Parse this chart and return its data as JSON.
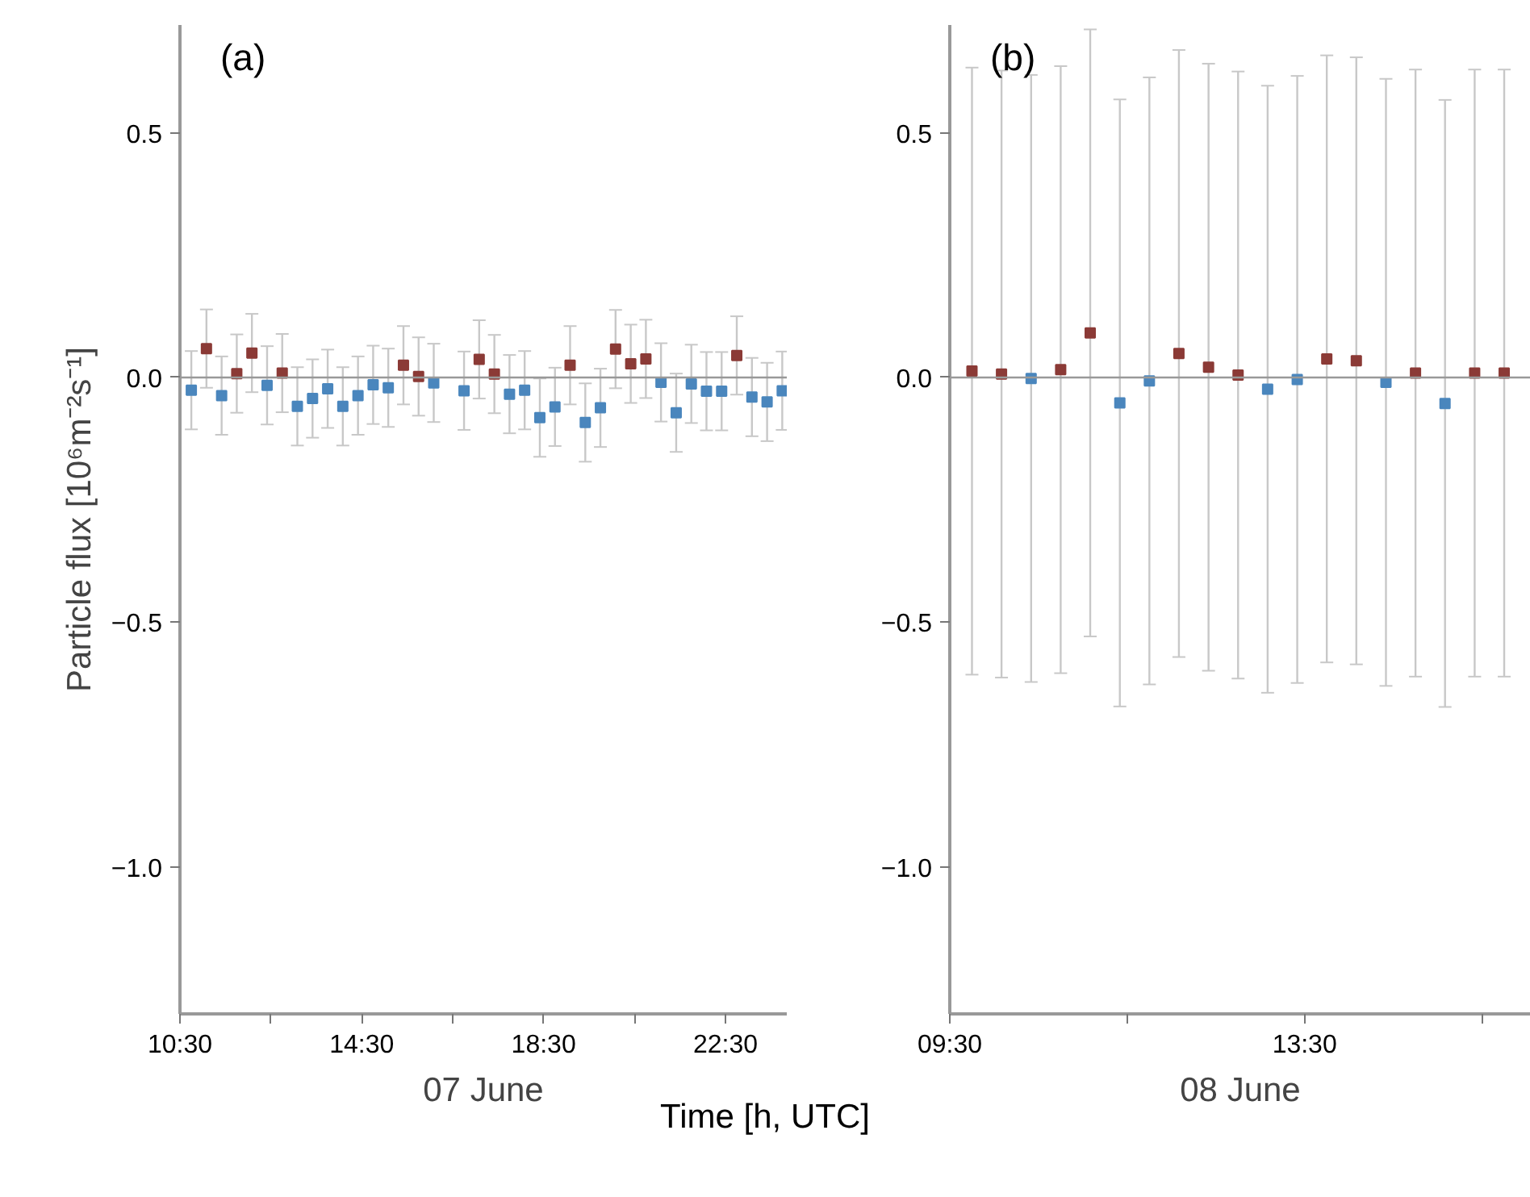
{
  "chart_data": [
    {
      "type": "scatter",
      "title": "(a)",
      "xlabel": "07 June",
      "ylabel": "Particle flux [10⁶m⁻²s⁻¹]",
      "annotations": [
        "Time [h, UTC]"
      ],
      "marker": "square",
      "grid": false,
      "xlim": [
        10.5,
        23.85
      ],
      "ylim": [
        -1.3,
        0.72
      ],
      "xticks": [
        {
          "value": 10.5,
          "label": "10:30"
        },
        {
          "value": 12.5,
          "label": null
        },
        {
          "value": 14.5,
          "label": "14:30"
        },
        {
          "value": 16.5,
          "label": null
        },
        {
          "value": 18.5,
          "label": "18:30"
        },
        {
          "value": 20.5,
          "label": null
        },
        {
          "value": 22.5,
          "label": "22:30"
        }
      ],
      "yticks": [
        {
          "value": 0.5,
          "label": "0.5"
        },
        {
          "value": 0,
          "label": "0.0"
        },
        {
          "value": -0.5,
          "label": "−0.5"
        },
        {
          "value": -1.0,
          "label": "−1.0"
        }
      ],
      "ref_lines": [
        {
          "axis": "y",
          "value": 0,
          "label": null,
          "color": "#999999"
        }
      ],
      "series": [
        {
          "x": [
            10.75,
            11.083,
            11.417,
            11.75,
            12.083,
            12.417,
            12.75,
            13.083,
            13.417,
            13.75,
            14.083,
            14.417,
            14.75,
            15.083,
            15.417,
            15.75,
            16.083,
            16.417,
            16.75,
            17.083,
            17.417,
            17.75,
            18.083,
            18.417,
            18.75,
            19.083,
            19.417,
            19.75,
            20.083,
            20.417,
            20.75,
            21.083,
            21.417,
            21.75,
            22.083,
            22.417,
            22.75,
            23.083,
            23.417,
            23.75
          ],
          "values": [
            -0.026,
            0.059,
            -0.037,
            0.008,
            0.05,
            -0.016,
            0.009,
            -0.059,
            -0.043,
            -0.023,
            -0.059,
            -0.037,
            -0.015,
            -0.021,
            0.025,
            0.002,
            -0.011,
            null,
            -0.027,
            0.037,
            0.007,
            -0.034,
            -0.026,
            -0.082,
            -0.06,
            0.025,
            -0.092,
            -0.062,
            0.058,
            0.028,
            0.038,
            -0.01,
            -0.072,
            -0.013,
            -0.028,
            -0.028,
            0.045,
            -0.04,
            -0.05,
            -0.027
          ],
          "colors": [
            "#4a86bd",
            "#8b3a36",
            "#4a86bd",
            "#8b3a36",
            "#8b3a36",
            "#4a86bd",
            "#8b3a36",
            "#4a86bd",
            "#4a86bd",
            "#4a86bd",
            "#4a86bd",
            "#4a86bd",
            "#4a86bd",
            "#4a86bd",
            "#8b3a36",
            "#8b3a36",
            "#4a86bd",
            "#4a86bd",
            "#4a86bd",
            "#8b3a36",
            "#8b3a36",
            "#4a86bd",
            "#4a86bd",
            "#4a86bd",
            "#4a86bd",
            "#8b3a36",
            "#4a86bd",
            "#4a86bd",
            "#8b3a36",
            "#8b3a36",
            "#8b3a36",
            "#4a86bd",
            "#4a86bd",
            "#4a86bd",
            "#4a86bd",
            "#4a86bd",
            "#8b3a36",
            "#4a86bd",
            "#4a86bd",
            "#4a86bd"
          ],
          "errors": [
            0.08,
            0.08,
            0.08,
            0.08,
            0.08,
            0.08,
            0.08,
            0.08,
            0.08,
            0.08,
            0.08,
            0.08,
            0.08,
            0.08,
            0.08,
            0.08,
            0.08,
            null,
            0.08,
            0.08,
            0.08,
            0.08,
            0.08,
            0.08,
            0.08,
            0.08,
            0.08,
            0.08,
            0.08,
            0.08,
            0.08,
            0.08,
            0.08,
            0.08,
            0.08,
            0.08,
            0.08,
            0.08,
            0.08,
            0.08
          ]
        }
      ]
    },
    {
      "type": "scatter",
      "title": "(b)",
      "xlabel": "08 June",
      "marker": "square",
      "grid": false,
      "xlim": [
        9.5,
        16.05
      ],
      "ylim": [
        -1.3,
        0.72
      ],
      "xticks": [
        {
          "value": 9.5,
          "label": "09:30"
        },
        {
          "value": 11.5,
          "label": null
        },
        {
          "value": 13.5,
          "label": "13:30"
        },
        {
          "value": 15.5,
          "label": null
        }
      ],
      "yticks": [
        {
          "value": 0.5,
          "label": "0.5"
        },
        {
          "value": 0,
          "label": "0.0"
        },
        {
          "value": -0.5,
          "label": "−0.5"
        },
        {
          "value": -1.0,
          "label": "−1.0"
        }
      ],
      "ref_lines": [
        {
          "axis": "y",
          "value": 0,
          "label": null,
          "color": "#999999"
        }
      ],
      "series": [
        {
          "x": [
            9.75,
            10.083,
            10.417,
            10.75,
            11.083,
            11.417,
            11.75,
            12.083,
            12.417,
            12.75,
            13.083,
            13.417,
            13.75,
            14.083,
            14.417,
            14.75,
            15.083,
            15.417,
            15.75
          ],
          "values": [
            0.013,
            0.007,
            -0.002,
            0.016,
            0.091,
            -0.052,
            -0.007,
            0.049,
            0.021,
            0.005,
            -0.024,
            -0.004,
            0.038,
            0.034,
            -0.01,
            0.009,
            -0.053,
            0.009,
            0.009
          ],
          "colors": [
            "#8b3a36",
            "#8b3a36",
            "#4a86bd",
            "#8b3a36",
            "#8b3a36",
            "#4a86bd",
            "#4a86bd",
            "#8b3a36",
            "#8b3a36",
            "#8b3a36",
            "#4a86bd",
            "#4a86bd",
            "#8b3a36",
            "#8b3a36",
            "#4a86bd",
            "#8b3a36",
            "#4a86bd",
            "#8b3a36",
            "#8b3a36"
          ],
          "errors": [
            0.62,
            0.62,
            0.62,
            0.62,
            0.62,
            0.62,
            0.62,
            0.62,
            0.62,
            0.62,
            0.62,
            0.62,
            0.62,
            0.62,
            0.62,
            0.62,
            0.62,
            0.62,
            0.62
          ]
        }
      ]
    }
  ]
}
